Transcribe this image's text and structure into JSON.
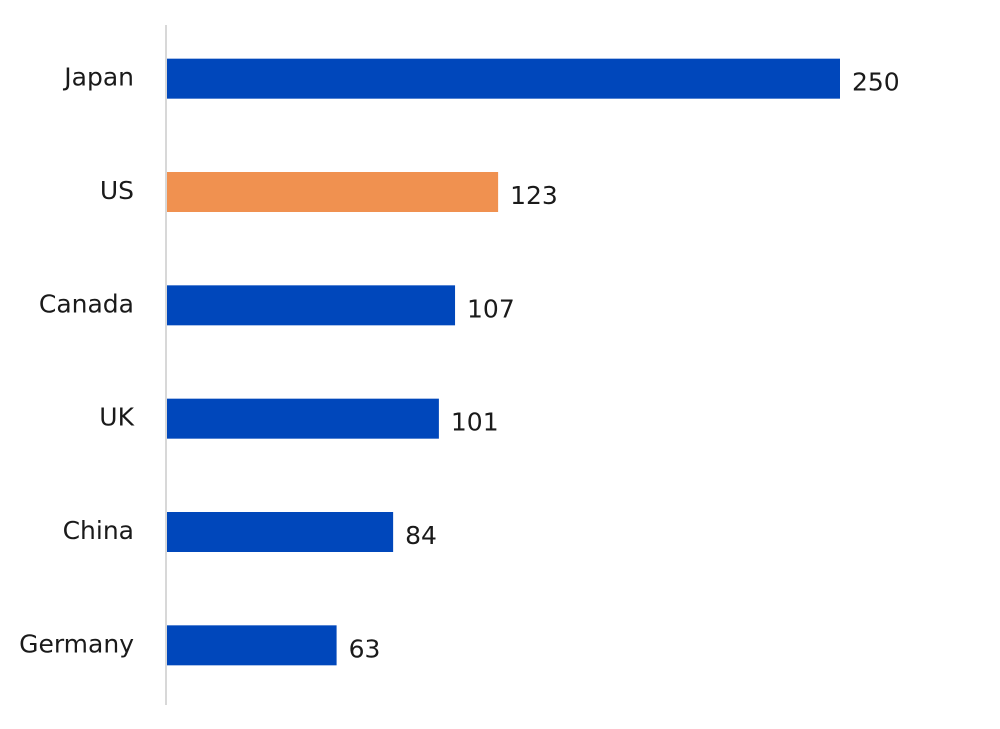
{
  "chart_data": {
    "type": "bar",
    "orientation": "horizontal",
    "categories": [
      "Japan",
      "US",
      "Canada",
      "UK",
      "China",
      "Germany"
    ],
    "values": [
      250,
      123,
      107,
      101,
      84,
      63
    ],
    "colors": [
      "#0047bb",
      "#f09150",
      "#0047bb",
      "#0047bb",
      "#0047bb",
      "#0047bb"
    ],
    "data_labels": true
  }
}
